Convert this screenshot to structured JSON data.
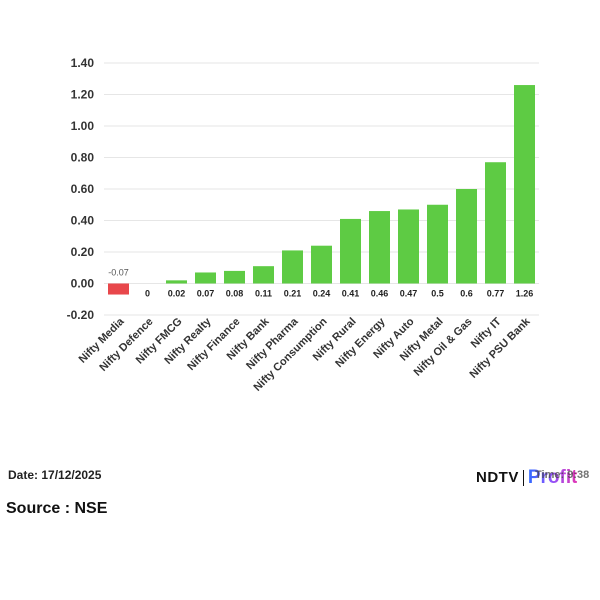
{
  "chart_data": {
    "type": "bar",
    "categories": [
      "Nifty Media",
      "Nifty Defence",
      "Nifty FMCG",
      "Nifty Realty",
      "Nifty Finance",
      "Nifty Bank",
      "Nifty Pharma",
      "Nifty Consumption",
      "Nifty Rural",
      "Nifty Energy",
      "Nifty Auto",
      "Nifty Metal",
      "Nifty Oil & Gas",
      "Nifty IT",
      "Nifty PSU Bank"
    ],
    "values": [
      -0.07,
      0,
      0.02,
      0.07,
      0.08,
      0.11,
      0.21,
      0.24,
      0.41,
      0.46,
      0.47,
      0.5,
      0.6,
      0.77,
      1.26
    ],
    "data_labels": [
      "-0.07",
      "0",
      "0.02",
      "0.07",
      "0.08",
      "0.11",
      "0.21",
      "0.24",
      "0.41",
      "0.46",
      "0.47",
      "0.5",
      "0.6",
      "0.77",
      "1.26"
    ],
    "yticks": [
      "1.40",
      "1.20",
      "1.00",
      "0.80",
      "0.60",
      "0.40",
      "0.20",
      "0.00",
      "-0.20"
    ],
    "ylim": [
      -0.2,
      1.4
    ],
    "grid": true,
    "colors": {
      "positive": "#5ecb44",
      "negative": "#e8474b",
      "grid": "#e6e6e6"
    },
    "title": "",
    "xlabel": "",
    "ylabel": ""
  },
  "footer": {
    "date": "Date: 17/12/2025",
    "source": "Source : NSE",
    "time": "Time: 9:38"
  },
  "brand": {
    "ndtv": "NDTV",
    "profit": "Profit"
  }
}
